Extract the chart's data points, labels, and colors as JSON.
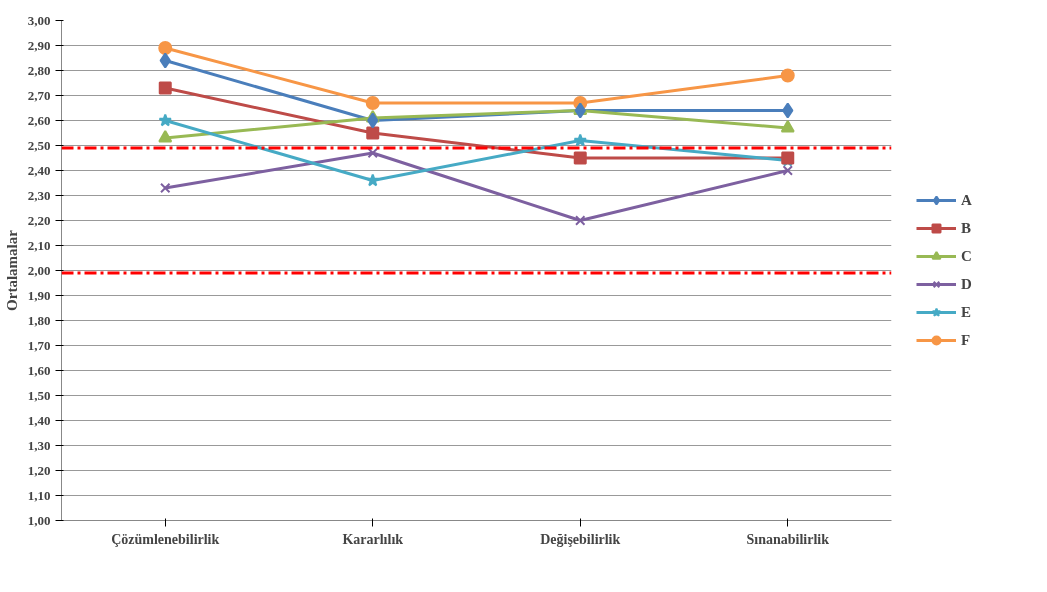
{
  "chart_data": {
    "type": "line",
    "ylabel": "Ortalamalar",
    "categories": [
      "Çözümlenebilirlik",
      "Kararlılık",
      "Değişebilirlik",
      "Sınanabilirlik"
    ],
    "series": [
      {
        "name": "A",
        "color": "#4a7ebb",
        "marker": "diamond",
        "values": [
          2.84,
          2.6,
          2.64,
          2.64
        ]
      },
      {
        "name": "B",
        "color": "#be4b48",
        "marker": "square",
        "values": [
          2.73,
          2.55,
          2.45,
          2.45
        ]
      },
      {
        "name": "C",
        "color": "#98b954",
        "marker": "triangle",
        "values": [
          2.53,
          2.61,
          2.64,
          2.57
        ]
      },
      {
        "name": "D",
        "color": "#7d60a0",
        "marker": "cross",
        "values": [
          2.33,
          2.47,
          2.2,
          2.4
        ]
      },
      {
        "name": "E",
        "color": "#46aac5",
        "marker": "star",
        "values": [
          2.6,
          2.36,
          2.52,
          2.44
        ]
      },
      {
        "name": "F",
        "color": "#f79646",
        "marker": "circle",
        "values": [
          2.89,
          2.67,
          2.67,
          2.78
        ]
      }
    ],
    "ylim": [
      1.0,
      3.0
    ],
    "yticks": [
      {
        "value": 1.0,
        "label": "1,00"
      },
      {
        "value": 1.1,
        "label": "1,10"
      },
      {
        "value": 1.2,
        "label": "1,20"
      },
      {
        "value": 1.3,
        "label": "1,30"
      },
      {
        "value": 1.4,
        "label": "1,40"
      },
      {
        "value": 1.5,
        "label": "1,50"
      },
      {
        "value": 1.6,
        "label": "1,60"
      },
      {
        "value": 1.7,
        "label": "1,70"
      },
      {
        "value": 1.8,
        "label": "1,80"
      },
      {
        "value": 1.9,
        "label": "1,90"
      },
      {
        "value": 2.0,
        "label": "2,00"
      },
      {
        "value": 2.1,
        "label": "2,10"
      },
      {
        "value": 2.2,
        "label": "2,20"
      },
      {
        "value": 2.3,
        "label": "2,30"
      },
      {
        "value": 2.4,
        "label": "2,40"
      },
      {
        "value": 2.5,
        "label": "2,50"
      },
      {
        "value": 2.6,
        "label": "2,60"
      },
      {
        "value": 2.7,
        "label": "2,70"
      },
      {
        "value": 2.8,
        "label": "2,80"
      },
      {
        "value": 2.9,
        "label": "2,90"
      },
      {
        "value": 3.0,
        "label": "3,00"
      }
    ],
    "ref_lines": [
      {
        "axis": "y",
        "value": 2.49,
        "color": "#ff0000",
        "line_style": "dashdot"
      },
      {
        "axis": "y",
        "value": 1.99,
        "color": "#ff0000",
        "line_style": "dashdot"
      }
    ],
    "grid": "y",
    "legend": "right",
    "line_style": "solid"
  }
}
